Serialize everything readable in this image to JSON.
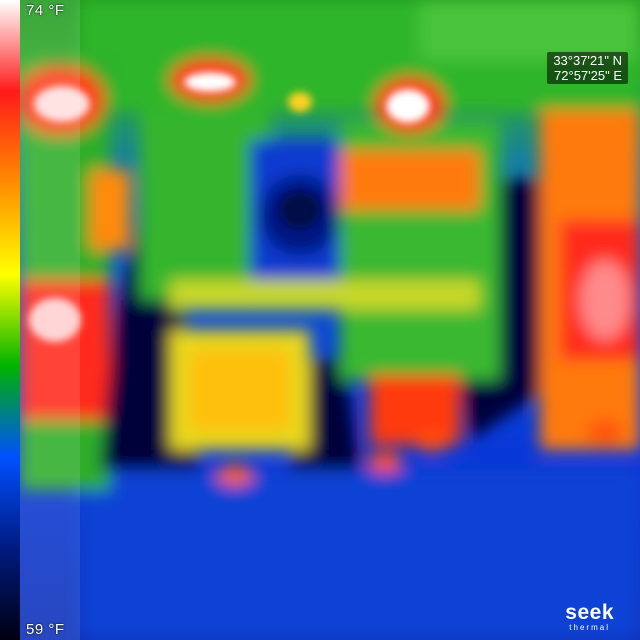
{
  "scale": {
    "max_label": "74 °F",
    "min_label": "59 °F",
    "palette": [
      "#ffffff",
      "#ff1a1a",
      "#ff8c00",
      "#ffff00",
      "#00b400",
      "#0050ff",
      "#001a80",
      "#000010"
    ]
  },
  "gps": {
    "latitude": "33°37'21\" N",
    "longitude": "72°57'25\" E"
  },
  "logo": {
    "word": "seek",
    "sub": "thermal"
  }
}
